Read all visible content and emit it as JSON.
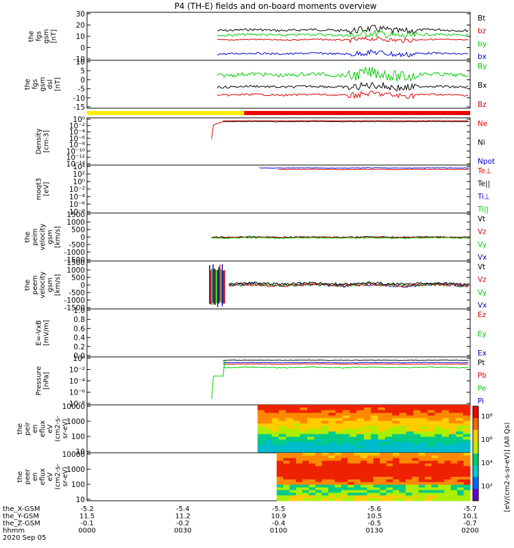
{
  "title": "P4 (TH-E) fields and on-board moments overview",
  "colors": {
    "black": "#000000",
    "red": "#dd0000",
    "green": "#00cc00",
    "blue": "#0000cc",
    "yellow": "#ffee00",
    "barRed": "#ee0000"
  },
  "chart_data": [
    {
      "id": "fgs_gsm",
      "type": "line",
      "ylabel": [
        "the",
        "fgs",
        "gsm",
        "[nT]"
      ],
      "yticks": [
        "30",
        "20",
        "10",
        "0",
        "-10"
      ],
      "ylim": [
        -10,
        30
      ],
      "series": [
        {
          "name": "Bt",
          "color": "#000000"
        },
        {
          "name": "bz",
          "color": "#dd0000"
        },
        {
          "name": "by",
          "color": "#00cc00"
        },
        {
          "name": "bx",
          "color": "#0000cc"
        }
      ]
    },
    {
      "id": "fgs_dsl",
      "type": "line",
      "ylabel": [
        "the",
        "fgs",
        "gsm",
        "dsl",
        "[nT]"
      ],
      "yticks": [
        "10",
        "5",
        "0",
        "-5",
        "-10",
        "-15"
      ],
      "ylim": [
        -15,
        10
      ],
      "series": [
        {
          "name": "By",
          "color": "#00cc00"
        },
        {
          "name": "Bx",
          "color": "#000000"
        },
        {
          "name": "Bz",
          "color": "#dd0000"
        }
      ]
    },
    {
      "id": "density",
      "type": "line",
      "ylabel": [
        "Density",
        "[cm-3]"
      ],
      "yticks": [
        "10⁰",
        "10⁻²",
        "10⁻⁴",
        "10⁻⁶",
        "10⁻⁸",
        "10⁻¹⁰",
        "10⁻¹²",
        "10⁻¹⁴"
      ],
      "scale": "log",
      "series": [
        {
          "name": "Ne",
          "color": "#dd0000"
        },
        {
          "name": "Ni",
          "color": "#000000"
        },
        {
          "name": "Npot",
          "color": "#0000cc"
        }
      ]
    },
    {
      "id": "moqt3",
      "type": "line",
      "ylabel": [
        "moqt3",
        "[eV]"
      ],
      "yticks": [
        "10⁴",
        "10²",
        "10⁰",
        "10⁻²",
        "10⁻⁴",
        "10⁻⁶",
        "10⁻⁸"
      ],
      "scale": "log",
      "series": [
        {
          "name": "Te⊥",
          "color": "#dd0000"
        },
        {
          "name": "Te||",
          "color": "#000000"
        },
        {
          "name": "Ti⊥",
          "color": "#0000cc"
        },
        {
          "name": "Ti||",
          "color": "#00cc00"
        }
      ]
    },
    {
      "id": "peim_vel",
      "type": "line",
      "ylabel": [
        "the",
        "peim",
        "velocity",
        "gsm",
        "[km/s]"
      ],
      "yticks": [
        "1500",
        "1000",
        "500",
        "0",
        "-500",
        "-1000",
        "-1500"
      ],
      "ylim": [
        -1500,
        1500
      ],
      "series": [
        {
          "name": "Vt",
          "color": "#000000"
        },
        {
          "name": "Vz",
          "color": "#dd0000"
        },
        {
          "name": "Vy",
          "color": "#00cc00"
        },
        {
          "name": "Vx",
          "color": "#0000cc"
        }
      ]
    },
    {
      "id": "peem_vel",
      "type": "line",
      "ylabel": [
        "the",
        "peem",
        "velocity",
        "gsm",
        "[km/s]"
      ],
      "yticks": [
        "1500",
        "1000",
        "500",
        "0",
        "-500",
        "-1000",
        "-1500"
      ],
      "ylim": [
        -1500,
        1500
      ],
      "series": [
        {
          "name": "Vt",
          "color": "#000000"
        },
        {
          "name": "Vz",
          "color": "#dd0000"
        },
        {
          "name": "Vy",
          "color": "#00cc00"
        },
        {
          "name": "Vx",
          "color": "#0000cc"
        }
      ]
    },
    {
      "id": "efield",
      "type": "line",
      "ylabel": [
        "E=-VxB",
        "[mV/m]"
      ],
      "yticks": [
        "1.0",
        "0.8",
        "0.6",
        "0.4",
        "0.2",
        "0.0"
      ],
      "ylim": [
        0,
        1
      ],
      "series": [
        {
          "name": "Ez",
          "color": "#dd0000"
        },
        {
          "name": "Ey",
          "color": "#00cc00"
        },
        {
          "name": "Ex",
          "color": "#0000cc"
        }
      ]
    },
    {
      "id": "pressure",
      "type": "line",
      "ylabel": [
        "Pressure",
        "[nPa]"
      ],
      "yticks": [
        "10⁰",
        "10⁻²",
        "10⁻⁴",
        "10⁻⁶",
        "10⁻⁸"
      ],
      "scale": "log",
      "series": [
        {
          "name": "Pt",
          "color": "#000000"
        },
        {
          "name": "Pb",
          "color": "#dd0000"
        },
        {
          "name": "Pe",
          "color": "#00cc00"
        },
        {
          "name": "Pi",
          "color": "#0000cc"
        }
      ]
    },
    {
      "id": "peir_spec",
      "type": "heatmap",
      "ylabel": [
        "the",
        "peir",
        "en",
        "eflux",
        "eV",
        "(cm2-s-",
        "sr-eV)"
      ],
      "yticks": [
        "10000",
        "1000",
        "100",
        "10"
      ]
    },
    {
      "id": "peer_spec",
      "type": "heatmap",
      "ylabel": [
        "the",
        "peer",
        "en",
        "eflux",
        "eV",
        "(cm2-s-",
        "sr-eV)"
      ],
      "yticks": [
        "10000",
        "1000",
        "100",
        "10"
      ]
    }
  ],
  "colorbar": {
    "label": "[eV/(cm2-s-sr-eV)] (All Qs)",
    "ticks": [
      "10⁸",
      "10⁶",
      "10⁴",
      "10²"
    ]
  },
  "xaxis": {
    "rows": [
      {
        "label": "the_X-GSM",
        "values": [
          "-5.2",
          "-5.4",
          "-5.5",
          "-5.6",
          "-5.7"
        ]
      },
      {
        "label": "the_Y-GSM",
        "values": [
          "11.5",
          "11.2",
          "10.9",
          "10.5",
          "10.1"
        ]
      },
      {
        "label": "the_Z-GSM",
        "values": [
          "-0.1",
          "-0.2",
          "-0.4",
          "-0.5",
          "-0.7"
        ]
      },
      {
        "label": "hhmm",
        "values": [
          "0000",
          "0030",
          "0100",
          "0130",
          "0200"
        ]
      }
    ],
    "date": "2020 Sep 05"
  }
}
